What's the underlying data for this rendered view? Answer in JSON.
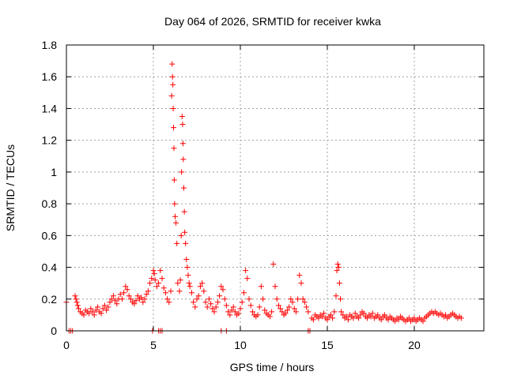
{
  "chart_data": {
    "type": "scatter",
    "title": "Day 064 of 2026, SRMTID for receiver kwka",
    "xlabel": "GPS time / hours",
    "ylabel": "SRMTID / TECUs",
    "xlim": [
      0,
      24
    ],
    "ylim": [
      0,
      1.8
    ],
    "xticks": [
      0,
      5,
      10,
      15,
      20
    ],
    "yticks": [
      0,
      0.2,
      0.4,
      0.6,
      0.8,
      1,
      1.2,
      1.4,
      1.6,
      1.8
    ],
    "xtick_labels": [
      "0",
      "5",
      "10",
      "15",
      "20"
    ],
    "ytick_labels": [
      "0",
      "0.2",
      "0.4",
      "0.6",
      "0.8",
      "1",
      "1.2",
      "1.4",
      "1.6",
      "1.8"
    ],
    "grid": true,
    "marker": "plus",
    "color": "#ff0000",
    "series": [
      {
        "name": "SRMTID",
        "x": [
          0.0,
          0.15,
          0.25,
          0.35,
          0.5,
          0.55,
          0.6,
          0.65,
          0.7,
          0.8,
          0.9,
          1.0,
          1.1,
          1.2,
          1.3,
          1.4,
          1.5,
          1.6,
          1.7,
          1.8,
          1.9,
          2.0,
          2.1,
          2.2,
          2.3,
          2.4,
          2.5,
          2.6,
          2.7,
          2.8,
          2.9,
          3.0,
          3.1,
          3.2,
          3.3,
          3.4,
          3.5,
          3.6,
          3.7,
          3.8,
          3.9,
          4.0,
          4.1,
          4.2,
          4.3,
          4.4,
          4.5,
          4.6,
          4.7,
          4.8,
          4.9,
          5.0,
          5.05,
          5.1,
          5.2,
          5.3,
          5.4,
          5.5,
          5.6,
          5.7,
          5.8,
          5.9,
          6.0,
          6.05,
          6.08,
          6.1,
          6.12,
          6.14,
          6.16,
          6.18,
          6.2,
          6.22,
          6.25,
          6.3,
          6.35,
          6.4,
          6.5,
          6.55,
          6.6,
          6.62,
          6.65,
          6.68,
          6.7,
          6.72,
          6.75,
          6.78,
          6.8,
          6.85,
          6.9,
          6.95,
          7.0,
          7.05,
          7.1,
          7.2,
          7.3,
          7.4,
          7.5,
          7.6,
          7.7,
          7.8,
          7.9,
          8.0,
          8.1,
          8.2,
          8.3,
          8.4,
          8.5,
          8.6,
          8.7,
          8.8,
          8.9,
          9.0,
          9.1,
          9.2,
          9.3,
          9.4,
          9.5,
          9.6,
          9.7,
          9.8,
          9.9,
          10.0,
          10.1,
          10.2,
          10.3,
          10.4,
          10.5,
          10.6,
          10.7,
          10.8,
          10.9,
          11.0,
          11.1,
          11.2,
          11.3,
          11.4,
          11.5,
          11.6,
          11.7,
          11.8,
          11.9,
          12.0,
          12.1,
          12.2,
          12.3,
          12.4,
          12.5,
          12.6,
          12.7,
          12.8,
          12.9,
          13.0,
          13.1,
          13.2,
          13.3,
          13.4,
          13.5,
          13.6,
          13.7,
          13.8,
          13.9,
          14.0,
          14.1,
          14.2,
          14.3,
          14.4,
          14.5,
          14.6,
          14.7,
          14.8,
          14.9,
          15.0,
          15.1,
          15.2,
          15.3,
          15.4,
          15.5,
          15.55,
          15.6,
          15.65,
          15.7,
          15.75,
          15.8,
          15.9,
          16.0,
          16.1,
          16.2,
          16.3,
          16.4,
          16.5,
          16.6,
          16.7,
          16.8,
          16.9,
          17.0,
          17.1,
          17.2,
          17.3,
          17.4,
          17.5,
          17.6,
          17.7,
          17.8,
          17.9,
          18.0,
          18.1,
          18.2,
          18.3,
          18.4,
          18.5,
          18.6,
          18.7,
          18.8,
          18.9,
          19.0,
          19.1,
          19.2,
          19.3,
          19.4,
          19.5,
          19.6,
          19.7,
          19.8,
          19.9,
          20.0,
          20.1,
          20.2,
          20.3,
          20.4,
          20.5,
          20.6,
          20.7,
          20.8,
          20.9,
          21.0,
          21.1,
          21.2,
          21.3,
          21.4,
          21.5,
          21.6,
          21.7,
          21.8,
          21.9,
          22.0,
          22.1,
          22.2,
          22.3,
          22.4,
          22.5,
          22.6,
          22.7,
          4.95,
          5.3,
          5.4,
          5.5,
          8.9,
          9.2,
          13.9
        ],
        "y": [
          0.18,
          0.0,
          0.0,
          0.0,
          0.22,
          0.2,
          0.18,
          0.16,
          0.14,
          0.12,
          0.11,
          0.1,
          0.13,
          0.12,
          0.11,
          0.14,
          0.12,
          0.1,
          0.13,
          0.15,
          0.12,
          0.11,
          0.14,
          0.16,
          0.13,
          0.15,
          0.18,
          0.2,
          0.22,
          0.19,
          0.17,
          0.2,
          0.23,
          0.2,
          0.24,
          0.28,
          0.26,
          0.22,
          0.2,
          0.18,
          0.17,
          0.19,
          0.22,
          0.2,
          0.21,
          0.18,
          0.2,
          0.23,
          0.25,
          0.3,
          0.33,
          0.38,
          0.36,
          0.32,
          0.28,
          0.3,
          0.38,
          0.33,
          0.27,
          0.24,
          0.2,
          0.18,
          0.25,
          1.48,
          1.68,
          1.6,
          1.55,
          1.4,
          1.28,
          1.15,
          0.95,
          0.8,
          0.72,
          0.68,
          0.55,
          0.3,
          0.25,
          0.32,
          0.6,
          1.0,
          1.35,
          1.3,
          1.18,
          1.08,
          0.9,
          0.75,
          0.62,
          0.55,
          0.45,
          0.4,
          0.35,
          0.3,
          0.28,
          0.24,
          0.18,
          0.15,
          0.2,
          0.22,
          0.28,
          0.3,
          0.25,
          0.18,
          0.15,
          0.2,
          0.17,
          0.14,
          0.12,
          0.15,
          0.18,
          0.22,
          0.28,
          0.26,
          0.2,
          0.16,
          0.12,
          0.1,
          0.13,
          0.15,
          0.12,
          0.1,
          0.11,
          0.14,
          0.18,
          0.24,
          0.38,
          0.33,
          0.2,
          0.16,
          0.12,
          0.1,
          0.09,
          0.1,
          0.15,
          0.28,
          0.2,
          0.13,
          0.11,
          0.1,
          0.09,
          0.12,
          0.42,
          0.28,
          0.2,
          0.16,
          0.14,
          0.12,
          0.1,
          0.11,
          0.13,
          0.15,
          0.2,
          0.18,
          0.14,
          0.12,
          0.2,
          0.35,
          0.3,
          0.2,
          0.18,
          0.15,
          0.12,
          0.0,
          0.08,
          0.07,
          0.1,
          0.09,
          0.08,
          0.1,
          0.09,
          0.11,
          0.08,
          0.07,
          0.09,
          0.1,
          0.08,
          0.12,
          0.22,
          0.38,
          0.42,
          0.4,
          0.3,
          0.2,
          0.12,
          0.1,
          0.08,
          0.09,
          0.07,
          0.1,
          0.09,
          0.08,
          0.11,
          0.09,
          0.08,
          0.1,
          0.12,
          0.11,
          0.09,
          0.08,
          0.1,
          0.09,
          0.11,
          0.08,
          0.09,
          0.1,
          0.08,
          0.07,
          0.09,
          0.1,
          0.08,
          0.07,
          0.09,
          0.08,
          0.07,
          0.06,
          0.08,
          0.07,
          0.09,
          0.08,
          0.07,
          0.06,
          0.07,
          0.08,
          0.06,
          0.07,
          0.08,
          0.06,
          0.07,
          0.08,
          0.07,
          0.06,
          0.08,
          0.09,
          0.1,
          0.11,
          0.12,
          0.11,
          0.12,
          0.11,
          0.1,
          0.11,
          0.1,
          0.09,
          0.1,
          0.08,
          0.09,
          0.1,
          0.11,
          0.1,
          0.09,
          0.08,
          0.09,
          0.08,
          0.0,
          0.0,
          0.0,
          0.0,
          0.0,
          0.0,
          0.0
        ]
      }
    ]
  }
}
